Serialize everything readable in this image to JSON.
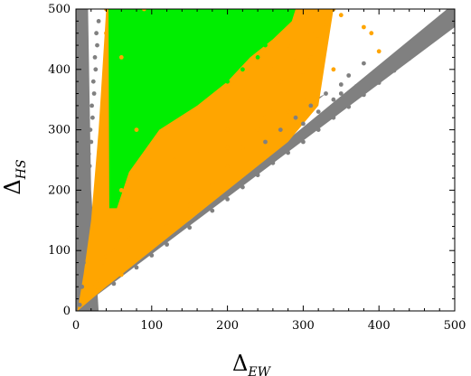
{
  "chart_data": {
    "type": "scatter",
    "title": "",
    "xlabel": {
      "symbol": "Δ",
      "subscript": "EW"
    },
    "ylabel": {
      "symbol": "Δ",
      "subscript": "HS"
    },
    "xlim": [
      0,
      500
    ],
    "ylim": [
      0,
      500
    ],
    "xticks": [
      "0",
      "100",
      "200",
      "300",
      "400",
      "500"
    ],
    "yticks": [
      "0",
      "100",
      "200",
      "300",
      "400",
      "500"
    ],
    "grid": false,
    "legend": "none",
    "series": [
      {
        "color": "#808080",
        "points": [
          [
            5,
            10
          ],
          [
            8,
            40
          ],
          [
            10,
            80
          ],
          [
            12,
            120
          ],
          [
            14,
            160
          ],
          [
            16,
            200
          ],
          [
            18,
            240
          ],
          [
            20,
            280
          ],
          [
            22,
            320
          ],
          [
            24,
            360
          ],
          [
            26,
            400
          ],
          [
            28,
            440
          ],
          [
            30,
            480
          ],
          [
            6,
            60
          ],
          [
            9,
            100
          ],
          [
            11,
            140
          ],
          [
            13,
            180
          ],
          [
            15,
            220
          ],
          [
            17,
            260
          ],
          [
            19,
            300
          ],
          [
            21,
            340
          ],
          [
            23,
            380
          ],
          [
            25,
            420
          ],
          [
            27,
            460
          ],
          [
            50,
            45
          ],
          [
            80,
            72
          ],
          [
            100,
            92
          ],
          [
            120,
            110
          ],
          [
            150,
            138
          ],
          [
            180,
            166
          ],
          [
            200,
            185
          ],
          [
            220,
            205
          ],
          [
            240,
            225
          ],
          [
            260,
            245
          ],
          [
            280,
            262
          ],
          [
            300,
            280
          ],
          [
            320,
            300
          ],
          [
            340,
            320
          ],
          [
            360,
            338
          ],
          [
            380,
            358
          ],
          [
            400,
            378
          ],
          [
            420,
            398
          ],
          [
            440,
            418
          ],
          [
            460,
            438
          ],
          [
            480,
            458
          ],
          [
            500,
            478
          ],
          [
            500,
            500
          ],
          [
            250,
            280
          ],
          [
            270,
            300
          ],
          [
            290,
            320
          ],
          [
            310,
            340
          ],
          [
            330,
            360
          ],
          [
            350,
            375
          ],
          [
            360,
            390
          ],
          [
            380,
            410
          ],
          [
            300,
            310
          ],
          [
            320,
            330
          ],
          [
            340,
            350
          ],
          [
            420,
            420
          ],
          [
            440,
            430
          ],
          [
            460,
            455
          ],
          [
            480,
            470
          ],
          [
            490,
            490
          ],
          [
            350,
            360
          ],
          [
            370,
            372
          ],
          [
            390,
            392
          ],
          [
            410,
            405
          ],
          [
            430,
            425
          ],
          [
            450,
            442
          ]
        ]
      },
      {
        "color": "#ffa500",
        "points": [
          [
            30,
            50
          ],
          [
            40,
            90
          ],
          [
            40,
            150
          ],
          [
            40,
            220
          ],
          [
            40,
            300
          ],
          [
            40,
            380
          ],
          [
            40,
            460
          ],
          [
            40,
            500
          ],
          [
            60,
            60
          ],
          [
            80,
            90
          ],
          [
            100,
            110
          ],
          [
            120,
            140
          ],
          [
            150,
            175
          ],
          [
            180,
            210
          ],
          [
            200,
            240
          ],
          [
            220,
            270
          ],
          [
            240,
            300
          ],
          [
            260,
            330
          ],
          [
            280,
            360
          ],
          [
            300,
            390
          ],
          [
            310,
            420
          ],
          [
            320,
            450
          ],
          [
            330,
            480
          ],
          [
            340,
            500
          ],
          [
            60,
            200
          ],
          [
            80,
            300
          ],
          [
            60,
            420
          ],
          [
            90,
            500
          ],
          [
            130,
            250
          ],
          [
            160,
            260
          ],
          [
            200,
            300
          ],
          [
            230,
            350
          ],
          [
            260,
            400
          ],
          [
            280,
            440
          ],
          [
            300,
            480
          ],
          [
            320,
            500
          ],
          [
            280,
            330
          ],
          [
            300,
            350
          ],
          [
            320,
            380
          ],
          [
            340,
            400
          ],
          [
            250,
            320
          ],
          [
            200,
            270
          ],
          [
            150,
            200
          ],
          [
            100,
            150
          ],
          [
            70,
            120
          ],
          [
            50,
            100
          ],
          [
            35,
            80
          ],
          [
            25,
            40
          ],
          [
            380,
            470
          ],
          [
            390,
            460
          ],
          [
            400,
            430
          ],
          [
            330,
            470
          ],
          [
            350,
            490
          ],
          [
            310,
            460
          ],
          [
            290,
            420
          ],
          [
            270,
            380
          ]
        ]
      },
      {
        "color": "#00ee00",
        "points": [
          [
            50,
            180
          ],
          [
            60,
            230
          ],
          [
            60,
            280
          ],
          [
            60,
            330
          ],
          [
            60,
            380
          ],
          [
            60,
            430
          ],
          [
            60,
            480
          ],
          [
            60,
            500
          ],
          [
            80,
            270
          ],
          [
            100,
            300
          ],
          [
            120,
            320
          ],
          [
            140,
            340
          ],
          [
            160,
            350
          ],
          [
            180,
            370
          ],
          [
            200,
            380
          ],
          [
            220,
            400
          ],
          [
            240,
            420
          ],
          [
            250,
            440
          ],
          [
            260,
            460
          ],
          [
            270,
            480
          ],
          [
            280,
            500
          ],
          [
            120,
            500
          ],
          [
            160,
            500
          ],
          [
            200,
            500
          ],
          [
            240,
            500
          ],
          [
            90,
            420
          ],
          [
            130,
            440
          ],
          [
            170,
            460
          ],
          [
            210,
            470
          ],
          [
            100,
            360
          ],
          [
            150,
            400
          ],
          [
            200,
            440
          ],
          [
            240,
            470
          ],
          [
            270,
            490
          ],
          [
            80,
            350
          ]
        ]
      }
    ]
  }
}
